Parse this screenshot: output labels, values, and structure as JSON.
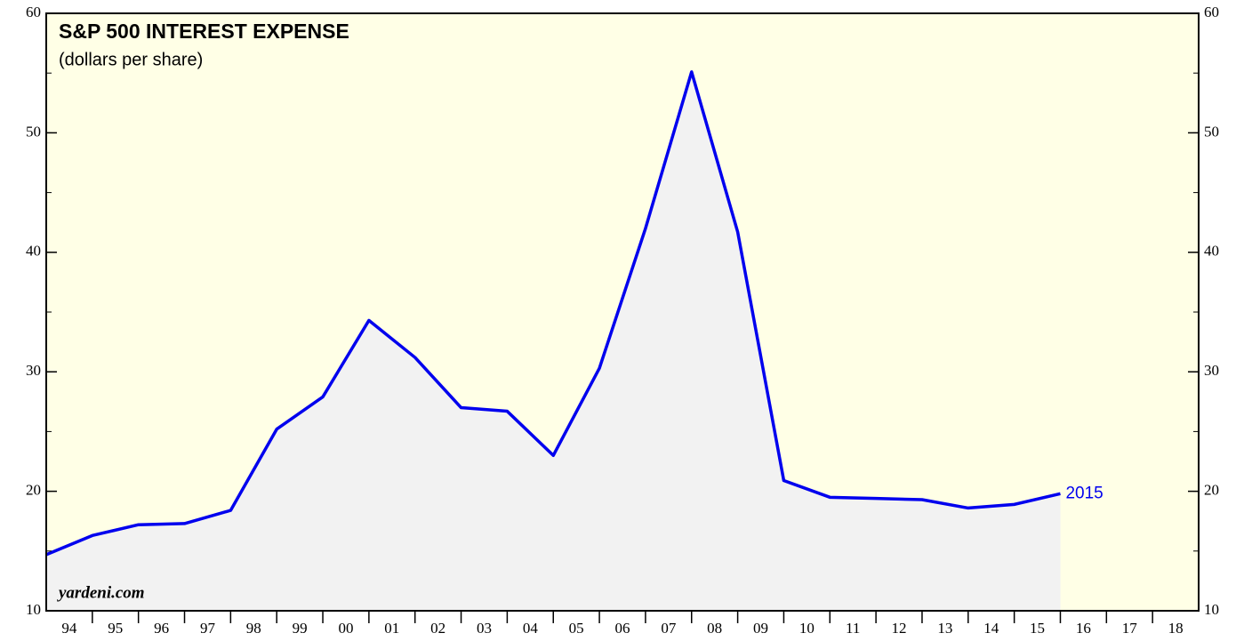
{
  "chart_data": {
    "type": "line",
    "title": "S&P 500 INTEREST EXPENSE",
    "subtitle": "(dollars per share)",
    "source": "yardeni.com",
    "annotation": "2015",
    "categories": [
      "94",
      "95",
      "96",
      "97",
      "98",
      "99",
      "00",
      "01",
      "02",
      "03",
      "04",
      "05",
      "06",
      "07",
      "08",
      "09",
      "10",
      "11",
      "12",
      "13",
      "14",
      "15",
      "16",
      "17",
      "18"
    ],
    "series": [
      {
        "name": "S&P 500 Interest Expense",
        "color": "#0000ee",
        "values": [
          14.7,
          16.3,
          17.2,
          17.3,
          18.4,
          25.2,
          27.9,
          34.3,
          31.2,
          27.0,
          26.7,
          23.0,
          30.3,
          42.0,
          55.1,
          41.7,
          20.9,
          19.5,
          19.4,
          19.3,
          18.6,
          18.9,
          19.8,
          null,
          null
        ]
      }
    ],
    "ylim": [
      10,
      60
    ],
    "yticks": [
      10,
      20,
      30,
      40,
      50,
      60
    ],
    "y2lim": [
      10,
      60
    ],
    "y2ticks": [
      10,
      20,
      30,
      40,
      50,
      60
    ],
    "background": "#ffffe6",
    "fill": "#f2f2f2"
  }
}
